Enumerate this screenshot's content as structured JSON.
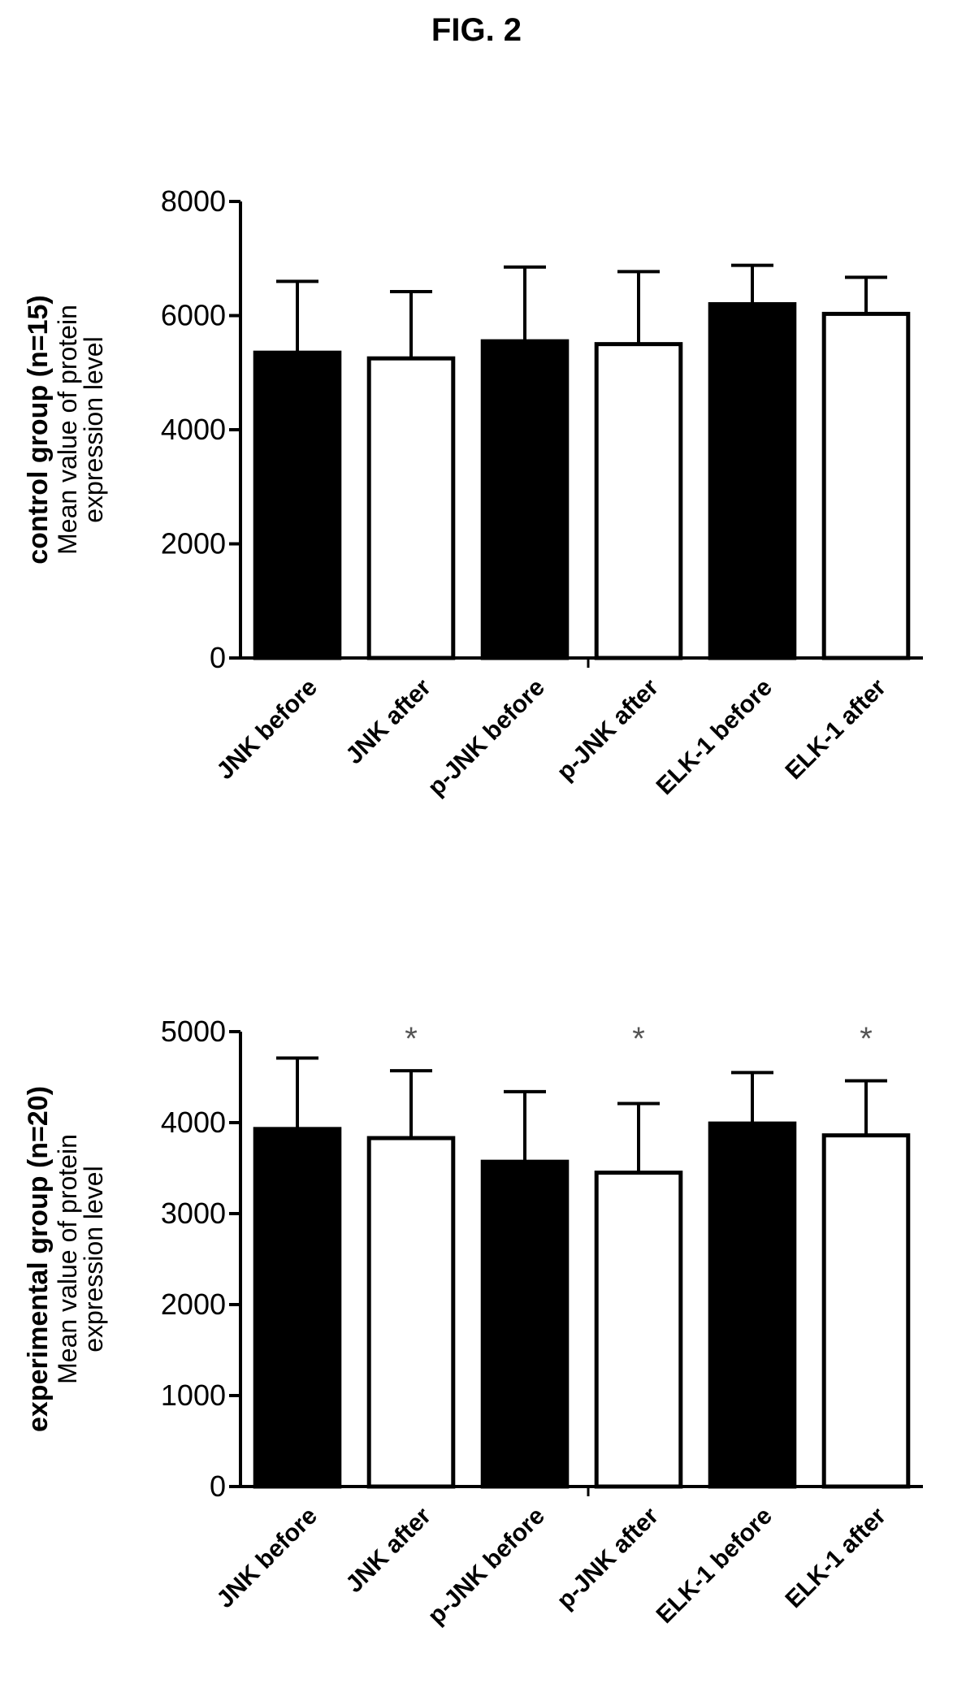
{
  "figure": {
    "title": "FIG. 2"
  },
  "chart_data": [
    {
      "type": "bar",
      "ylabel_line1": "control group (n=15)",
      "ylabel_line2": "Mean value of protein",
      "ylabel_line3": "expression level",
      "ylim": [
        0,
        8000
      ],
      "yticks": [
        0,
        2000,
        4000,
        6000,
        8000
      ],
      "categories": [
        "JNK before",
        "JNK after",
        "p-JNK before",
        "p-JNK after",
        "ELK-1 before",
        "ELK-1 after"
      ],
      "fills": [
        "#000000",
        "#ffffff",
        "#000000",
        "#ffffff",
        "#000000",
        "#ffffff"
      ],
      "values": [
        5350,
        5250,
        5550,
        5500,
        6200,
        6030
      ],
      "errors": [
        1250,
        1170,
        1300,
        1270,
        680,
        640
      ],
      "significant": [
        false,
        false,
        false,
        false,
        false,
        false
      ]
    },
    {
      "type": "bar",
      "ylabel_line1": "experimental group (n=20)",
      "ylabel_line2": "Mean value of protein",
      "ylabel_line3": "expression level",
      "ylim": [
        0,
        5000
      ],
      "yticks": [
        0,
        1000,
        2000,
        3000,
        4000,
        5000
      ],
      "categories": [
        "JNK before",
        "JNK after",
        "p-JNK before",
        "p-JNK after",
        "ELK-1 before",
        "ELK-1 after"
      ],
      "fills": [
        "#000000",
        "#ffffff",
        "#000000",
        "#ffffff",
        "#000000",
        "#ffffff"
      ],
      "values": [
        3930,
        3830,
        3570,
        3450,
        3990,
        3860
      ],
      "errors": [
        780,
        740,
        770,
        760,
        560,
        600
      ],
      "significant": [
        false,
        true,
        false,
        true,
        false,
        true
      ],
      "significance_mark": "*"
    }
  ]
}
